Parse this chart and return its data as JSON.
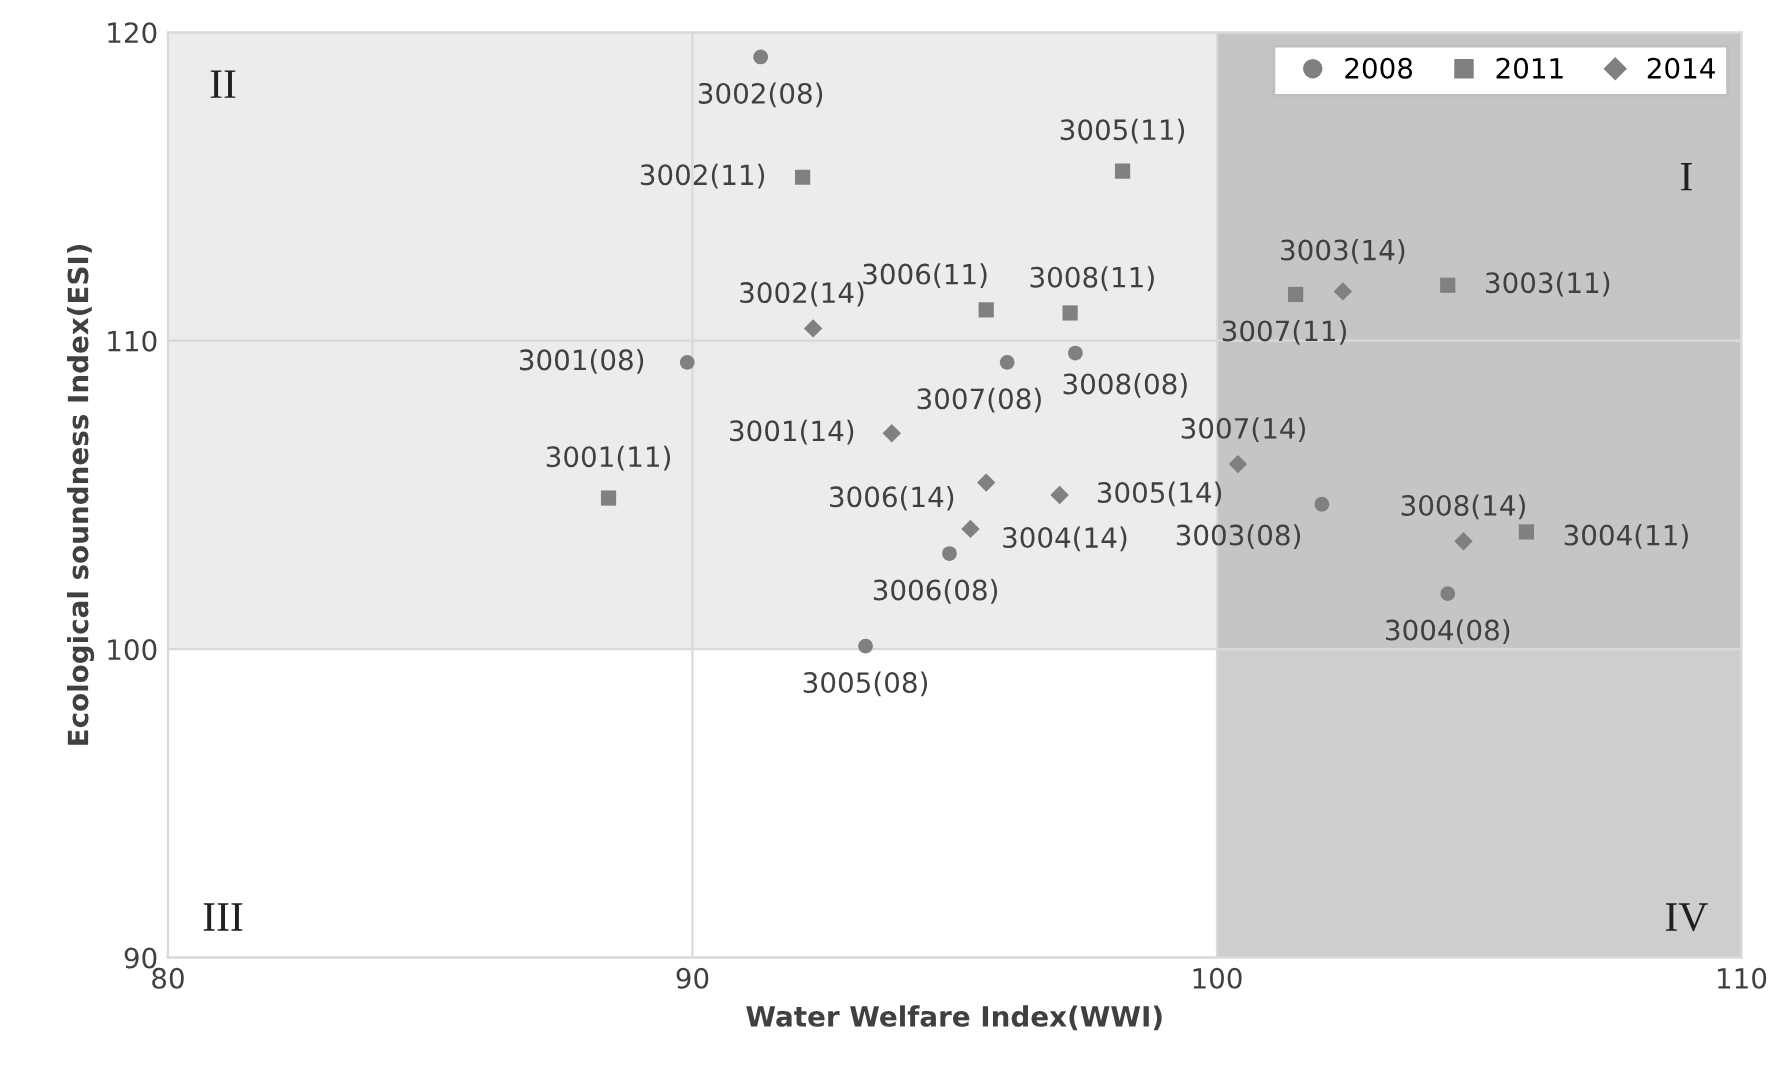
{
  "chart_data": {
    "type": "scatter",
    "xlabel": "Water Welfare Index(WWI)",
    "ylabel": "Ecological soundness Index(ESI)",
    "xlim": [
      80,
      110
    ],
    "xticks": [
      80,
      90,
      100,
      110
    ],
    "ylim": [
      90,
      120
    ],
    "yticks": [
      90,
      100,
      110,
      120
    ],
    "grid": true,
    "legend": "top right",
    "series": [
      {
        "name": "2008",
        "color": "#808080",
        "marker": "circle",
        "x": [
          91.3,
          89.9,
          96.0,
          97.3,
          94.9,
          93.3,
          102.0,
          104.4
        ],
        "values": [
          119.2,
          109.3,
          109.3,
          109.6,
          103.1,
          100.1,
          104.7,
          101.8
        ]
      },
      {
        "name": "2011",
        "color": "#808080",
        "marker": "square",
        "x": [
          92.1,
          98.2,
          95.6,
          97.2,
          88.4,
          101.5,
          104.4,
          105.9
        ],
        "values": [
          115.3,
          115.5,
          111.0,
          110.9,
          104.9,
          111.5,
          111.8,
          103.8
        ]
      },
      {
        "name": "2014",
        "color": "#808080",
        "marker": "diamond",
        "x": [
          92.3,
          93.8,
          95.6,
          95.3,
          97.0,
          100.4,
          102.4,
          104.7
        ],
        "values": [
          110.4,
          107.0,
          105.4,
          103.9,
          105.0,
          106.0,
          111.6,
          103.5
        ]
      }
    ],
    "bands": [
      {
        "axis": "y",
        "from": 100,
        "to": 120,
        "color": "#ececec"
      },
      {
        "axis": "x",
        "from": 100,
        "to": 110,
        "color": "#a6a6a6"
      }
    ],
    "annotations": [
      {
        "text": "3002(08)",
        "x": 91.3,
        "y": 119.2
      },
      {
        "text": "3001(08)",
        "x": 89.9,
        "y": 109.3
      },
      {
        "text": "3007(08)",
        "x": 96.0,
        "y": 109.3
      },
      {
        "text": "3008(08)",
        "x": 97.3,
        "y": 109.6
      },
      {
        "text": "3006(08)",
        "x": 94.9,
        "y": 103.1
      },
      {
        "text": "3005(08)",
        "x": 93.3,
        "y": 100.1
      },
      {
        "text": "3003(08)",
        "x": 102.0,
        "y": 104.7
      },
      {
        "text": "3004(08)",
        "x": 104.4,
        "y": 101.8
      },
      {
        "text": "3002(11)",
        "x": 92.1,
        "y": 115.3
      },
      {
        "text": "3005(11)",
        "x": 98.2,
        "y": 115.5
      },
      {
        "text": "3006(11)",
        "x": 95.6,
        "y": 111.0
      },
      {
        "text": "3008(11)",
        "x": 97.2,
        "y": 110.9
      },
      {
        "text": "3001(11)",
        "x": 88.4,
        "y": 104.9
      },
      {
        "text": "3007(11)",
        "x": 101.5,
        "y": 111.5
      },
      {
        "text": "3003(11)",
        "x": 104.4,
        "y": 111.8
      },
      {
        "text": "3004(11)",
        "x": 105.9,
        "y": 103.8
      },
      {
        "text": "3002(14)",
        "x": 92.3,
        "y": 110.4
      },
      {
        "text": "3001(14)",
        "x": 93.8,
        "y": 107.0
      },
      {
        "text": "3006(14)",
        "x": 95.6,
        "y": 105.4
      },
      {
        "text": "3004(14)",
        "x": 95.3,
        "y": 103.9
      },
      {
        "text": "3005(14)",
        "x": 97.0,
        "y": 105.0
      },
      {
        "text": "3007(14)",
        "x": 100.4,
        "y": 106.0
      },
      {
        "text": "3003(14)",
        "x": 102.4,
        "y": 111.6
      },
      {
        "text": "3008(14)",
        "x": 104.7,
        "y": 103.5
      },
      "I",
      "II",
      "III",
      "IV"
    ]
  }
}
